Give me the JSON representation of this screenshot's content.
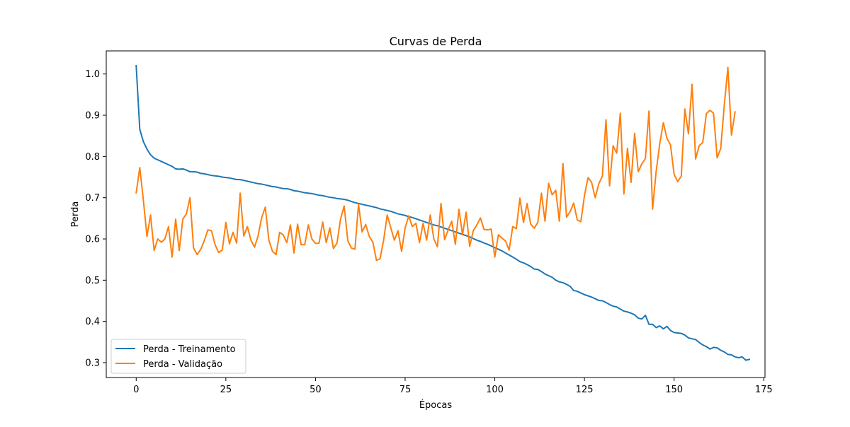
{
  "chart_data": {
    "type": "line",
    "title": "Curvas de Perda",
    "xlabel": "Épocas",
    "ylabel": "Perda",
    "xlim": [
      -8.35,
      175.35
    ],
    "ylim": [
      0.264,
      1.056
    ],
    "xticks": [
      0,
      25,
      50,
      75,
      100,
      125,
      150,
      175
    ],
    "yticks": [
      0.3,
      0.4,
      0.5,
      0.6,
      0.7,
      0.8,
      0.9,
      1.0
    ],
    "xtick_labels": [
      "0",
      "25",
      "50",
      "75",
      "100",
      "125",
      "150",
      "175"
    ],
    "ytick_labels": [
      "0.3",
      "0.4",
      "0.5",
      "0.6",
      "0.7",
      "0.8",
      "0.9",
      "1.0"
    ],
    "grid": false,
    "legend_position": "lower-left",
    "x_start": 0,
    "series": [
      {
        "name": "Perda - Treinamento",
        "color": "#1f77b4",
        "values": [
          1.02,
          0.866,
          0.836,
          0.818,
          0.804,
          0.796,
          0.792,
          0.788,
          0.784,
          0.78,
          0.776,
          0.77,
          0.769,
          0.77,
          0.767,
          0.763,
          0.763,
          0.762,
          0.759,
          0.758,
          0.756,
          0.754,
          0.753,
          0.752,
          0.75,
          0.749,
          0.748,
          0.746,
          0.744,
          0.744,
          0.742,
          0.74,
          0.738,
          0.736,
          0.734,
          0.733,
          0.731,
          0.729,
          0.727,
          0.726,
          0.724,
          0.722,
          0.722,
          0.72,
          0.717,
          0.716,
          0.714,
          0.712,
          0.711,
          0.71,
          0.708,
          0.706,
          0.705,
          0.703,
          0.701,
          0.7,
          0.698,
          0.697,
          0.696,
          0.694,
          0.691,
          0.688,
          0.686,
          0.684,
          0.682,
          0.68,
          0.678,
          0.676,
          0.673,
          0.671,
          0.669,
          0.667,
          0.664,
          0.661,
          0.659,
          0.657,
          0.654,
          0.652,
          0.649,
          0.646,
          0.643,
          0.64,
          0.637,
          0.634,
          0.632,
          0.629,
          0.626,
          0.623,
          0.62,
          0.617,
          0.614,
          0.611,
          0.608,
          0.605,
          0.601,
          0.597,
          0.594,
          0.59,
          0.587,
          0.583,
          0.579,
          0.575,
          0.571,
          0.566,
          0.561,
          0.556,
          0.551,
          0.545,
          0.542,
          0.538,
          0.533,
          0.527,
          0.526,
          0.521,
          0.515,
          0.511,
          0.507,
          0.5,
          0.496,
          0.494,
          0.49,
          0.485,
          0.475,
          0.473,
          0.469,
          0.465,
          0.462,
          0.459,
          0.455,
          0.451,
          0.45,
          0.446,
          0.441,
          0.437,
          0.435,
          0.43,
          0.425,
          0.423,
          0.42,
          0.416,
          0.408,
          0.406,
          0.415,
          0.393,
          0.393,
          0.385,
          0.389,
          0.382,
          0.388,
          0.378,
          0.373,
          0.372,
          0.371,
          0.367,
          0.36,
          0.358,
          0.356,
          0.349,
          0.343,
          0.339,
          0.333,
          0.337,
          0.336,
          0.33,
          0.326,
          0.32,
          0.319,
          0.314,
          0.312,
          0.314,
          0.306,
          0.308
        ]
      },
      {
        "name": "Perda - Validação",
        "color": "#ff7f0e",
        "values": [
          0.712,
          0.773,
          0.694,
          0.606,
          0.658,
          0.572,
          0.6,
          0.592,
          0.6,
          0.63,
          0.556,
          0.648,
          0.572,
          0.648,
          0.661,
          0.7,
          0.578,
          0.562,
          0.575,
          0.596,
          0.622,
          0.62,
          0.586,
          0.567,
          0.573,
          0.64,
          0.588,
          0.616,
          0.59,
          0.711,
          0.607,
          0.63,
          0.597,
          0.58,
          0.608,
          0.652,
          0.677,
          0.597,
          0.57,
          0.562,
          0.616,
          0.61,
          0.591,
          0.634,
          0.566,
          0.636,
          0.586,
          0.586,
          0.634,
          0.6,
          0.589,
          0.59,
          0.641,
          0.591,
          0.627,
          0.577,
          0.59,
          0.649,
          0.68,
          0.596,
          0.578,
          0.575,
          0.684,
          0.617,
          0.635,
          0.606,
          0.592,
          0.548,
          0.552,
          0.597,
          0.658,
          0.627,
          0.597,
          0.62,
          0.57,
          0.627,
          0.656,
          0.63,
          0.638,
          0.591,
          0.638,
          0.597,
          0.658,
          0.6,
          0.581,
          0.686,
          0.598,
          0.622,
          0.643,
          0.587,
          0.672,
          0.61,
          0.665,
          0.582,
          0.62,
          0.634,
          0.651,
          0.623,
          0.622,
          0.624,
          0.556,
          0.61,
          0.602,
          0.595,
          0.573,
          0.63,
          0.625,
          0.699,
          0.64,
          0.686,
          0.636,
          0.626,
          0.64,
          0.711,
          0.643,
          0.735,
          0.707,
          0.718,
          0.643,
          0.783,
          0.653,
          0.666,
          0.687,
          0.646,
          0.642,
          0.705,
          0.749,
          0.737,
          0.7,
          0.734,
          0.752,
          0.889,
          0.729,
          0.826,
          0.808,
          0.905,
          0.709,
          0.82,
          0.737,
          0.856,
          0.763,
          0.782,
          0.795,
          0.91,
          0.672,
          0.764,
          0.831,
          0.882,
          0.844,
          0.828,
          0.757,
          0.739,
          0.752,
          0.915,
          0.855,
          0.975,
          0.794,
          0.826,
          0.834,
          0.904,
          0.912,
          0.905,
          0.797,
          0.819,
          0.925,
          1.016,
          0.852,
          0.908
        ]
      }
    ]
  }
}
